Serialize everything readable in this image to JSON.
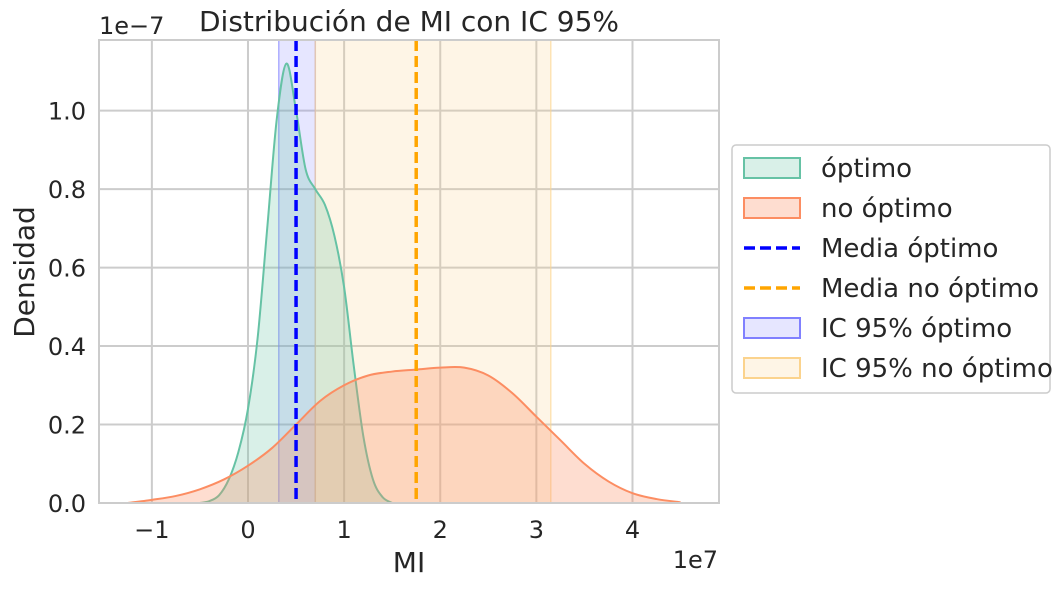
{
  "chart_data": {
    "type": "area",
    "title": "Distribución de MI con IC 95%",
    "xlabel": "MI",
    "ylabel": "Densidad",
    "x_offset_label": "1e7",
    "y_offset_label": "1e−7",
    "xlim": [
      -1.55,
      4.9
    ],
    "ylim": [
      0,
      1.18
    ],
    "x_ticks": [
      -1,
      0,
      1,
      2,
      3,
      4
    ],
    "x_tick_labels": [
      "−1",
      "0",
      "1",
      "2",
      "3",
      "4"
    ],
    "y_ticks": [
      0.0,
      0.2,
      0.4,
      0.6,
      0.8,
      1.0
    ],
    "y_tick_labels": [
      "0.0",
      "0.2",
      "0.4",
      "0.6",
      "0.8",
      "1.0"
    ],
    "grid": true,
    "legend_position": "right-outside",
    "series": [
      {
        "name": "óptimo",
        "kind": "kde",
        "color": "#66c2a5",
        "fill_opacity": 0.25,
        "x": [
          -0.5,
          -0.4,
          -0.3,
          -0.2,
          -0.1,
          0.0,
          0.1,
          0.2,
          0.3,
          0.4,
          0.5,
          0.6,
          0.7,
          0.8,
          0.9,
          1.0,
          1.1,
          1.2,
          1.3,
          1.4,
          1.5
        ],
        "y": [
          0.0,
          0.005,
          0.02,
          0.06,
          0.13,
          0.24,
          0.42,
          0.7,
          0.98,
          1.12,
          1.0,
          0.85,
          0.8,
          0.76,
          0.68,
          0.55,
          0.35,
          0.17,
          0.06,
          0.015,
          0.0
        ]
      },
      {
        "name": "no óptimo",
        "kind": "kde",
        "color": "#fc8d62",
        "fill_opacity": 0.3,
        "x": [
          -1.25,
          -1.0,
          -0.75,
          -0.5,
          -0.25,
          0.0,
          0.25,
          0.5,
          0.75,
          1.0,
          1.25,
          1.5,
          1.75,
          2.0,
          2.25,
          2.5,
          2.75,
          3.0,
          3.25,
          3.5,
          3.75,
          4.0,
          4.25,
          4.5
        ],
        "y": [
          0.0,
          0.008,
          0.018,
          0.035,
          0.06,
          0.095,
          0.14,
          0.2,
          0.26,
          0.3,
          0.325,
          0.335,
          0.34,
          0.345,
          0.345,
          0.325,
          0.28,
          0.22,
          0.16,
          0.1,
          0.055,
          0.025,
          0.01,
          0.002
        ]
      }
    ],
    "reference_lines": [
      {
        "name": "Media óptimo",
        "x": 0.5,
        "color": "#0000ff",
        "style": "dashed"
      },
      {
        "name": "Media no óptimo",
        "x": 1.75,
        "color": "#ffa500",
        "style": "dashed"
      }
    ],
    "bands": [
      {
        "name": "IC 95% óptimo",
        "x_range": [
          0.32,
          0.7
        ],
        "color": "#8080ff",
        "opacity": 0.2
      },
      {
        "name": "IC 95% no óptimo",
        "x_range": [
          0.7,
          3.15
        ],
        "color": "#fbd38d",
        "opacity": 0.22
      }
    ],
    "legend": [
      {
        "label": "óptimo",
        "kind": "patch",
        "fill": "#66c2a5",
        "fill_opacity": 0.25,
        "edge": "#66c2a5"
      },
      {
        "label": "no óptimo",
        "kind": "patch",
        "fill": "#fc8d62",
        "fill_opacity": 0.3,
        "edge": "#fc8d62"
      },
      {
        "label": "Media óptimo",
        "kind": "line",
        "edge": "#0000ff"
      },
      {
        "label": "Media no óptimo",
        "kind": "line",
        "edge": "#ffa500"
      },
      {
        "label": "IC 95% óptimo",
        "kind": "patch",
        "fill": "#8080ff",
        "fill_opacity": 0.2,
        "edge": "#8080ff"
      },
      {
        "label": "IC 95% no óptimo",
        "kind": "patch",
        "fill": "#fbd38d",
        "fill_opacity": 0.22,
        "edge": "#fbd38d"
      }
    ]
  }
}
